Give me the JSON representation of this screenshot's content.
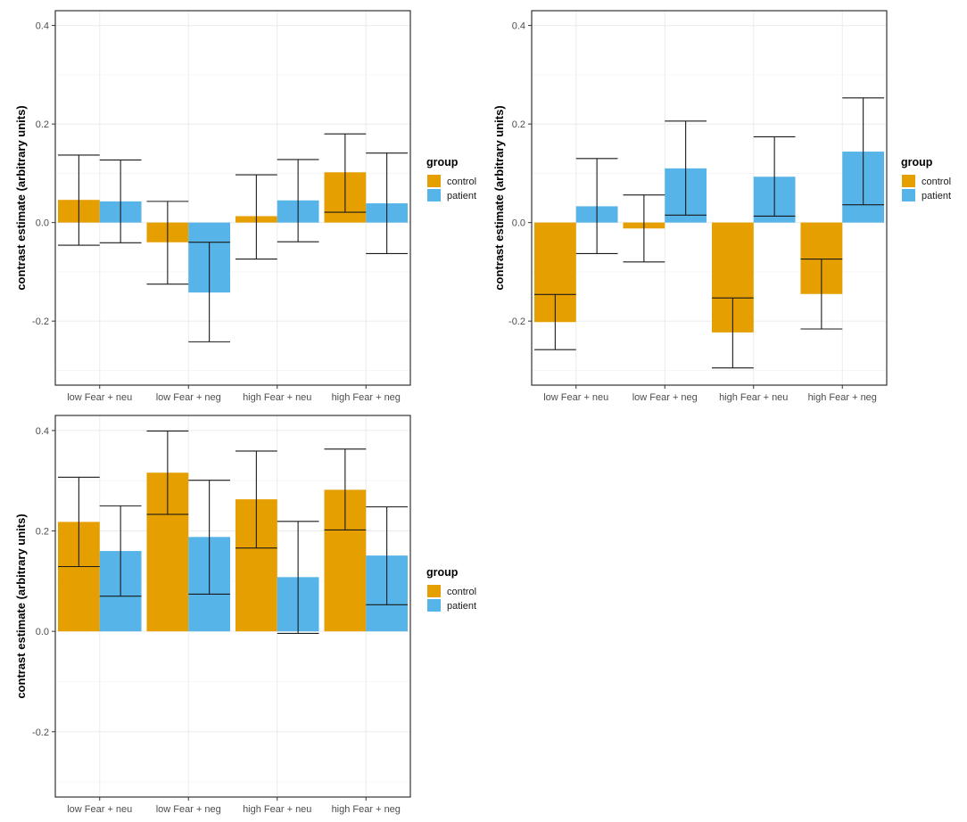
{
  "chart_data": [
    {
      "type": "bar",
      "ylabel": "contrast estimate (arbitrary units)",
      "xlabel": "",
      "ylim": [
        -0.33,
        0.43
      ],
      "yticks": [
        -0.2,
        0.0,
        0.2,
        0.4
      ],
      "ytick_labels": [
        "-0.2",
        "0.0",
        "0.2",
        "0.4"
      ],
      "categories": [
        "low Fear + neu",
        "low Fear + neg",
        "high Fear + neu",
        "high Fear + neg"
      ],
      "legend": {
        "title": "group",
        "position": "right"
      },
      "series": [
        {
          "name": "control",
          "color": "#E69F00",
          "values": [
            0.046,
            -0.04,
            0.013,
            0.102
          ],
          "err_low": [
            -0.046,
            -0.125,
            -0.074,
            0.021
          ],
          "err_high": [
            0.137,
            0.043,
            0.097,
            0.18
          ]
        },
        {
          "name": "patient",
          "color": "#56B4E9",
          "values": [
            0.043,
            -0.142,
            0.045,
            0.039
          ],
          "err_low": [
            -0.041,
            -0.242,
            -0.039,
            -0.063
          ],
          "err_high": [
            0.127,
            -0.04,
            0.128,
            0.141
          ]
        }
      ]
    },
    {
      "type": "bar",
      "ylabel": "contrast estimate (arbitrary units)",
      "xlabel": "",
      "ylim": [
        -0.33,
        0.43
      ],
      "yticks": [
        -0.2,
        0.0,
        0.2,
        0.4
      ],
      "ytick_labels": [
        "-0.2",
        "0.0",
        "0.2",
        "0.4"
      ],
      "categories": [
        "low Fear + neu",
        "low Fear + neg",
        "high Fear + neu",
        "high Fear + neg"
      ],
      "legend": {
        "title": "group",
        "position": "right"
      },
      "series": [
        {
          "name": "control",
          "color": "#E69F00",
          "values": [
            -0.202,
            -0.012,
            -0.223,
            -0.145
          ],
          "err_low": [
            -0.258,
            -0.08,
            -0.295,
            -0.216
          ],
          "err_high": [
            -0.146,
            0.056,
            -0.153,
            -0.074
          ]
        },
        {
          "name": "patient",
          "color": "#56B4E9",
          "values": [
            0.033,
            0.11,
            0.093,
            0.144
          ],
          "err_low": [
            -0.063,
            0.015,
            0.013,
            0.036
          ],
          "err_high": [
            0.13,
            0.206,
            0.174,
            0.253
          ]
        }
      ]
    },
    {
      "type": "bar",
      "ylabel": "contrast estimate (arbitrary units)",
      "xlabel": "",
      "ylim": [
        -0.33,
        0.43
      ],
      "yticks": [
        -0.2,
        0.0,
        0.2,
        0.4
      ],
      "ytick_labels": [
        "-0.2",
        "0.0",
        "0.2",
        "0.4"
      ],
      "categories": [
        "low Fear + neu",
        "low Fear + neg",
        "high Fear + neu",
        "high Fear + neg"
      ],
      "legend": {
        "title": "group",
        "position": "right"
      },
      "series": [
        {
          "name": "control",
          "color": "#E69F00",
          "values": [
            0.218,
            0.316,
            0.263,
            0.282
          ],
          "err_low": [
            0.129,
            0.233,
            0.166,
            0.202
          ],
          "err_high": [
            0.307,
            0.399,
            0.359,
            0.363
          ]
        },
        {
          "name": "patient",
          "color": "#56B4E9",
          "values": [
            0.16,
            0.188,
            0.108,
            0.151
          ],
          "err_low": [
            0.07,
            0.074,
            -0.004,
            0.053
          ],
          "err_high": [
            0.25,
            0.301,
            0.219,
            0.248
          ]
        }
      ]
    }
  ]
}
